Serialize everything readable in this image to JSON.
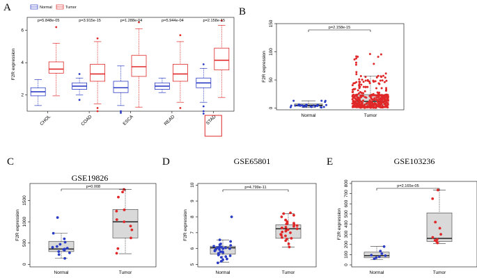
{
  "colors": {
    "normal": "#2b3cc4",
    "tumor": "#e02828",
    "box_fill": "#d9d9d9",
    "box_edge": "#555555",
    "highlight": "#e02828"
  },
  "chart_data": [
    {
      "panel": "A",
      "type": "box",
      "ylabel": "F2R expression",
      "ylim": [
        1,
        6.8
      ],
      "yticks": [
        2,
        4,
        6
      ],
      "legend": [
        "Normal",
        "Tumor"
      ],
      "legend_position": "top-left",
      "highlighted_category": "STAD",
      "categories": [
        {
          "name": "CHOL",
          "pvalue": "p=5.848e-05",
          "normal": {
            "whislo": 1.35,
            "q1": 1.95,
            "med": 2.2,
            "q3": 2.45,
            "whishi": 2.95,
            "outliers": []
          },
          "tumor": {
            "whislo": 1.95,
            "q1": 3.35,
            "med": 3.6,
            "q3": 4.05,
            "whishi": 5.2,
            "outliers": [
              6.2
            ]
          }
        },
        {
          "name": "COAD",
          "pvalue": "p=3.915e-15",
          "normal": {
            "whislo": 2.0,
            "q1": 2.35,
            "med": 2.55,
            "q3": 2.75,
            "whishi": 3.05,
            "outliers": [
              3.3,
              1.7
            ]
          },
          "tumor": {
            "whislo": 1.45,
            "q1": 2.85,
            "med": 3.3,
            "q3": 3.9,
            "whishi": 5.3,
            "outliers": [
              5.5,
              1.0,
              1.2
            ]
          }
        },
        {
          "name": "ESCA",
          "pvalue": "p=1.288e-04",
          "normal": {
            "whislo": 1.35,
            "q1": 2.15,
            "med": 2.45,
            "q3": 2.85,
            "whishi": 3.8,
            "outliers": [
              1.0,
              0.9
            ]
          },
          "tumor": {
            "whislo": 1.25,
            "q1": 3.15,
            "med": 3.75,
            "q3": 4.45,
            "whishi": 6.1,
            "outliers": [
              6.5
            ]
          }
        },
        {
          "name": "READ",
          "pvalue": "p=5.944e-04",
          "normal": {
            "whislo": 2.15,
            "q1": 2.35,
            "med": 2.55,
            "q3": 2.75,
            "whishi": 3.05,
            "outliers": []
          },
          "tumor": {
            "whislo": 1.55,
            "q1": 2.85,
            "med": 3.3,
            "q3": 3.9,
            "whishi": 5.3,
            "outliers": [
              5.7,
              1.2
            ]
          }
        },
        {
          "name": "STAD",
          "pvalue": "p=2.158e-15",
          "normal": {
            "whislo": 1.55,
            "q1": 2.45,
            "med": 2.75,
            "q3": 3.05,
            "whishi": 3.65,
            "outliers": [
              3.9,
              1.3,
              1.0,
              0.85
            ]
          },
          "tumor": {
            "whislo": 1.85,
            "q1": 3.55,
            "med": 4.15,
            "q3": 4.9,
            "whishi": 6.3,
            "outliers": [
              6.6
            ]
          }
        }
      ]
    },
    {
      "panel": "B",
      "type": "box+jitter",
      "ylabel": "F2R expression",
      "ylim": [
        -3,
        150
      ],
      "yticks": [
        0,
        50,
        100,
        150
      ],
      "pvalue": "p=2.158e-15",
      "groups": [
        {
          "name": "Normal",
          "whislo": 1,
          "q1": 3.5,
          "med": 5,
          "q3": 7.5,
          "whishi": 13,
          "n_points": 32
        },
        {
          "name": "Tumor",
          "whislo": 0.5,
          "q1": 6,
          "med": 12,
          "q3": 24,
          "whishi": 57,
          "n_points": 360,
          "point_max": 96
        }
      ]
    },
    {
      "panel": "C",
      "type": "box+jitter",
      "title": "GSE19826",
      "ylabel": "F2R expression",
      "ylim": [
        -60,
        1900
      ],
      "yticks": [
        0,
        500,
        1000,
        1500
      ],
      "pvalue": "p=0.008",
      "groups": [
        {
          "name": "Normal",
          "whislo": 140,
          "q1": 300,
          "med": 360,
          "q3": 540,
          "whishi": 730,
          "points": [
            1100,
            730,
            600,
            520,
            470,
            420,
            400,
            380,
            360,
            350,
            330,
            300,
            270,
            230,
            140
          ]
        },
        {
          "name": "Tumor",
          "whislo": 250,
          "q1": 620,
          "med": 1000,
          "q3": 1290,
          "whishi": 1760,
          "points": [
            1760,
            1700,
            1580,
            1280,
            1250,
            1050,
            1000,
            900,
            810,
            620,
            370,
            260
          ]
        }
      ]
    },
    {
      "panel": "D",
      "type": "box+jitter",
      "title": "GSE65801",
      "ylabel": "F2R expression",
      "ylim": [
        4.85,
        10.1
      ],
      "yticks": [
        5,
        6,
        7,
        8,
        9,
        10
      ],
      "pvalue": "p=4.799e-11",
      "groups": [
        {
          "name": "Normal",
          "whislo": 5.15,
          "q1": 5.65,
          "med": 6.05,
          "q3": 6.15,
          "whishi": 6.55,
          "points": [
            8.0,
            6.55,
            6.45,
            6.3,
            6.2,
            6.15,
            6.1,
            6.1,
            6.05,
            6.0,
            6.0,
            5.95,
            5.9,
            5.85,
            5.8,
            5.75,
            5.7,
            5.65,
            5.6,
            5.55,
            5.45,
            5.35,
            5.2,
            5.1,
            6.25,
            6.05,
            5.95,
            5.8,
            5.5,
            5.3
          ]
        },
        {
          "name": "Tumor",
          "whislo": 6.1,
          "q1": 6.65,
          "med": 7.25,
          "q3": 7.5,
          "whishi": 8.2,
          "points": [
            8.25,
            8.2,
            8.1,
            8.0,
            7.8,
            7.7,
            7.6,
            7.55,
            7.5,
            7.45,
            7.4,
            7.35,
            7.3,
            7.25,
            7.2,
            7.15,
            7.1,
            7.0,
            6.9,
            6.8,
            6.7,
            6.65,
            6.5,
            6.3,
            6.1,
            7.6,
            7.3,
            7.05,
            6.85,
            6.6
          ]
        }
      ]
    },
    {
      "panel": "E",
      "type": "box+jitter",
      "title": "GSE103236",
      "ylabel": "F2R expression",
      "ylim": [
        -20,
        820
      ],
      "yticks": [
        0,
        100,
        200,
        300,
        400,
        500,
        600,
        700,
        800
      ],
      "pvalue": "p=2.165e-05",
      "groups": [
        {
          "name": "Normal",
          "whislo": 50,
          "q1": 70,
          "med": 90,
          "q3": 125,
          "whishi": 180,
          "points": [
            180,
            135,
            110,
            95,
            90,
            80,
            70,
            60
          ]
        },
        {
          "name": "Tumor",
          "whislo": 210,
          "q1": 230,
          "med": 260,
          "q3": 510,
          "whishi": 735,
          "points": [
            735,
            650,
            420,
            360,
            300,
            270,
            250,
            240,
            230,
            215
          ]
        }
      ]
    }
  ]
}
